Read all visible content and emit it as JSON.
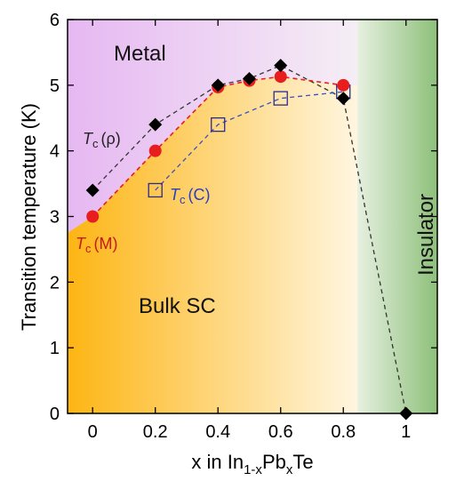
{
  "chart_data": {
    "type": "scatter",
    "xlabel": {
      "main": "x in In",
      "sub1": "1-x",
      "mid": "Pb",
      "sub2": "x",
      "end": "Te"
    },
    "ylabel": "Transition temperature (K)",
    "xlim": [
      -0.08,
      1.1
    ],
    "ylim": [
      0,
      6
    ],
    "x_ticks": [
      0,
      0.2,
      0.4,
      0.6,
      0.8,
      1
    ],
    "x_tick_labels": [
      "0",
      "0.2",
      "0.4",
      "0.6",
      "0.8",
      "1"
    ],
    "y_ticks": [
      0,
      1,
      2,
      3,
      4,
      5,
      6
    ],
    "y_tick_labels": [
      "0",
      "1",
      "2",
      "3",
      "4",
      "5",
      "6"
    ],
    "grid": false,
    "regions": {
      "metal": {
        "label": "Metal",
        "colors": [
          "#e6b8f2",
          "#f5eef5"
        ]
      },
      "bulk_sc": {
        "label": "Bulk SC",
        "colors": [
          "#fdb514",
          "#fff6e0"
        ],
        "boundary_x": [
          -0.08,
          0.0,
          0.2,
          0.4,
          0.5,
          0.6,
          0.8,
          0.845
        ],
        "boundary_y": [
          2.75,
          3.0,
          4.0,
          4.97,
          5.07,
          5.13,
          5.0,
          5.0
        ]
      },
      "insulator": {
        "label": "Insulator",
        "x_start": 0.845,
        "colors": [
          "#e6f0e0",
          "#8ec07a"
        ]
      }
    },
    "series": [
      {
        "name": "Tc (ρ)",
        "label_main": "T",
        "label_sub": "c",
        "label_paren": "(ρ)",
        "marker": "diamond",
        "color": "#000000",
        "line_color": "#333333",
        "x": [
          0,
          0.2,
          0.4,
          0.5,
          0.6,
          0.8,
          1.0
        ],
        "y": [
          3.4,
          4.4,
          5.0,
          5.1,
          5.3,
          4.8,
          0.0
        ]
      },
      {
        "name": "Tc (M)",
        "label_main": "T",
        "label_sub": "c",
        "label_paren": "(M)",
        "marker": "circle",
        "color": "#e81e1e",
        "line_color": "#e81e1e",
        "x": [
          0,
          0.2,
          0.4,
          0.5,
          0.6,
          0.8
        ],
        "y": [
          3.0,
          4.0,
          4.97,
          5.07,
          5.13,
          5.0
        ]
      },
      {
        "name": "Tc (C)",
        "label_main": "T",
        "label_sub": "c",
        "label_paren": "(C)",
        "marker": "open-square",
        "color": "#2b2b8c",
        "line_color": "#3a4fc0",
        "x": [
          0.2,
          0.4,
          0.6,
          0.8
        ],
        "y": [
          3.4,
          4.4,
          4.8,
          4.9
        ]
      }
    ]
  }
}
